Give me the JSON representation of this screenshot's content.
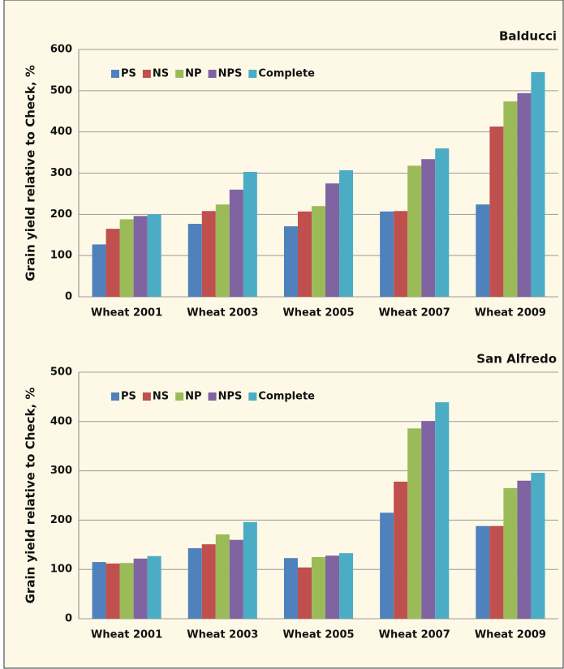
{
  "chart_data": [
    {
      "type": "bar",
      "title": "Balducci",
      "y_label": "Grain yield relative to Check, %",
      "categories": [
        "Wheat 2001",
        "Wheat 2003",
        "Wheat 2005",
        "Wheat 2007",
        "Wheat 2009"
      ],
      "series": [
        {
          "name": "PS",
          "color": "#4f81bd",
          "values": [
            127,
            177,
            171,
            207,
            224
          ]
        },
        {
          "name": "NS",
          "color": "#c0504d",
          "values": [
            165,
            208,
            207,
            208,
            413
          ]
        },
        {
          "name": "NP",
          "color": "#9bbb59",
          "values": [
            188,
            224,
            220,
            318,
            474
          ]
        },
        {
          "name": "NPS",
          "color": "#8064a2",
          "values": [
            196,
            260,
            275,
            334,
            494
          ]
        },
        {
          "name": "Complete",
          "color": "#4bacc6",
          "values": [
            200,
            303,
            307,
            360,
            545
          ]
        }
      ],
      "ylim": [
        0,
        600
      ],
      "yticks": [
        0,
        100,
        200,
        300,
        400,
        500,
        600
      ],
      "grid": true,
      "legend": "upper left"
    },
    {
      "type": "bar",
      "title": "San Alfredo",
      "y_label": "Grain yield relative to Check, %",
      "categories": [
        "Wheat 2001",
        "Wheat 2003",
        "Wheat 2005",
        "Wheat 2007",
        "Wheat 2009"
      ],
      "series": [
        {
          "name": "PS",
          "color": "#4f81bd",
          "values": [
            115,
            143,
            123,
            215,
            188
          ]
        },
        {
          "name": "NS",
          "color": "#c0504d",
          "values": [
            112,
            151,
            104,
            278,
            188
          ]
        },
        {
          "name": "NP",
          "color": "#9bbb59",
          "values": [
            113,
            171,
            125,
            386,
            265
          ]
        },
        {
          "name": "NPS",
          "color": "#8064a2",
          "values": [
            122,
            160,
            128,
            401,
            280
          ]
        },
        {
          "name": "Complete",
          "color": "#4bacc6",
          "values": [
            127,
            196,
            133,
            439,
            296
          ]
        }
      ],
      "ylim": [
        0,
        500
      ],
      "yticks": [
        0,
        100,
        200,
        300,
        400,
        500
      ],
      "grid": true,
      "legend": "upper left"
    }
  ]
}
